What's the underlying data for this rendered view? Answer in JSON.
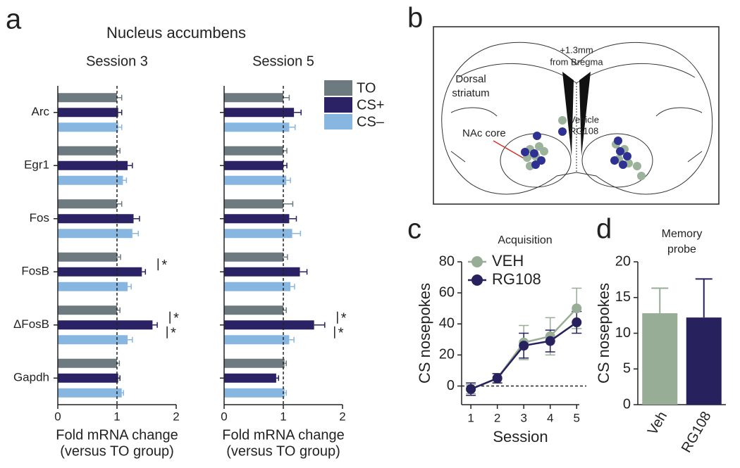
{
  "panels": [
    "a",
    "b",
    "c",
    "d"
  ],
  "diagram": {
    "bregma": [
      "+1.3mm",
      "from Bregma"
    ],
    "region": [
      "Dorsal",
      "striatum"
    ],
    "target": "NAc core",
    "legend": [
      {
        "name": "Vehicle",
        "color": "#9bb39a"
      },
      {
        "name": "RG108",
        "color": "#2e3192"
      }
    ]
  },
  "chart_data": [
    {
      "type": "hbar",
      "suptitle": "Nucleus accumbens",
      "title": "Session 3",
      "categories": [
        "Arc",
        "Egr1",
        "Fos",
        "FosB",
        "ΔFosB",
        "Gapdh"
      ],
      "series": [
        {
          "name": "TO",
          "color": "#6d7b80",
          "values": [
            1.0,
            1.0,
            1.0,
            1.0,
            1.0,
            1.0
          ],
          "errors": [
            0.08,
            0.05,
            0.08,
            0.06,
            0.05,
            0.04
          ]
        },
        {
          "name": "CS+",
          "color": "#2b2266",
          "values": [
            1.02,
            1.18,
            1.28,
            1.42,
            1.6,
            1.02
          ],
          "errors": [
            0.06,
            0.08,
            0.1,
            0.06,
            0.08,
            0.03
          ]
        },
        {
          "name": "CS–",
          "color": "#87b7e1",
          "values": [
            1.02,
            1.1,
            1.26,
            1.18,
            1.18,
            1.08
          ],
          "errors": [
            0.06,
            0.06,
            0.1,
            0.06,
            0.08,
            0.03
          ]
        }
      ],
      "significance": [
        [],
        [],
        [],
        [
          {
            "pair": [
              "TO",
              "CS+"
            ],
            "label": "*"
          }
        ],
        [
          {
            "pair": [
              "TO",
              "CS+"
            ],
            "label": "*"
          },
          {
            "pair": [
              "CS+",
              "CS–"
            ],
            "label": "*"
          }
        ],
        []
      ],
      "refline": 1,
      "xlim": [
        0,
        2
      ],
      "xticks": [
        0,
        1,
        2
      ],
      "xlabel": [
        "Fold mRNA change",
        "(versus TO group)"
      ]
    },
    {
      "type": "hbar",
      "title": "Session 5",
      "series": [
        {
          "color": "#6d7b80",
          "values": [
            1.0,
            1.0,
            1.0,
            1.0,
            1.0,
            1.02
          ],
          "errors": [
            0.1,
            0.06,
            0.16,
            0.07,
            0.05,
            0.03
          ]
        },
        {
          "color": "#2b2266",
          "values": [
            1.18,
            1.0,
            1.1,
            1.28,
            1.52,
            0.88
          ],
          "errors": [
            0.12,
            0.06,
            0.12,
            0.12,
            0.18,
            0.04
          ]
        },
        {
          "color": "#87b7e1",
          "values": [
            1.1,
            1.05,
            1.15,
            1.12,
            1.1,
            1.02
          ],
          "errors": [
            0.1,
            0.07,
            0.14,
            0.07,
            0.08,
            0.03
          ]
        }
      ],
      "significance": [
        [],
        [],
        [],
        [],
        [
          {
            "pair": [
              "TO",
              "CS+"
            ],
            "label": "*"
          },
          {
            "pair": [
              "CS+",
              "CS–"
            ],
            "label": "*"
          }
        ],
        []
      ],
      "refline": 1,
      "xlim": [
        0,
        2
      ],
      "xticks": [
        0,
        1,
        2
      ],
      "xlabel": [
        "Fold mRNA change",
        "(versus TO group)"
      ]
    },
    {
      "type": "line",
      "title": "Acquisition",
      "x": [
        1,
        2,
        3,
        4,
        5
      ],
      "series": [
        {
          "name": "VEH",
          "color": "#97ad95",
          "values": [
            -2,
            5,
            28,
            32,
            50
          ],
          "errors": [
            3,
            3,
            11,
            12,
            13
          ]
        },
        {
          "name": "RG108",
          "color": "#27215e",
          "values": [
            -2,
            5,
            26,
            29,
            41
          ],
          "errors": [
            4,
            3,
            8,
            7,
            7
          ]
        }
      ],
      "refline": 0,
      "xlim": [
        0.65,
        5.1
      ],
      "xticks": [
        1,
        2,
        3,
        4,
        5
      ],
      "ylim": [
        -12,
        80
      ],
      "yticks": [
        0,
        20,
        40,
        60,
        80
      ],
      "xlabel": "Session",
      "ylabel": "CS nosepokes"
    },
    {
      "type": "bar",
      "title": [
        "Memory",
        "probe"
      ],
      "categories": [
        "Veh",
        "RG108"
      ],
      "values": [
        12.8,
        12.2
      ],
      "errors": [
        3.5,
        5.4
      ],
      "colors": [
        "#97ad95",
        "#27215e"
      ],
      "ylim": [
        0,
        20
      ],
      "yticks": [
        0,
        5,
        10,
        15,
        20
      ],
      "ylabel": "CS nosepokes"
    }
  ]
}
